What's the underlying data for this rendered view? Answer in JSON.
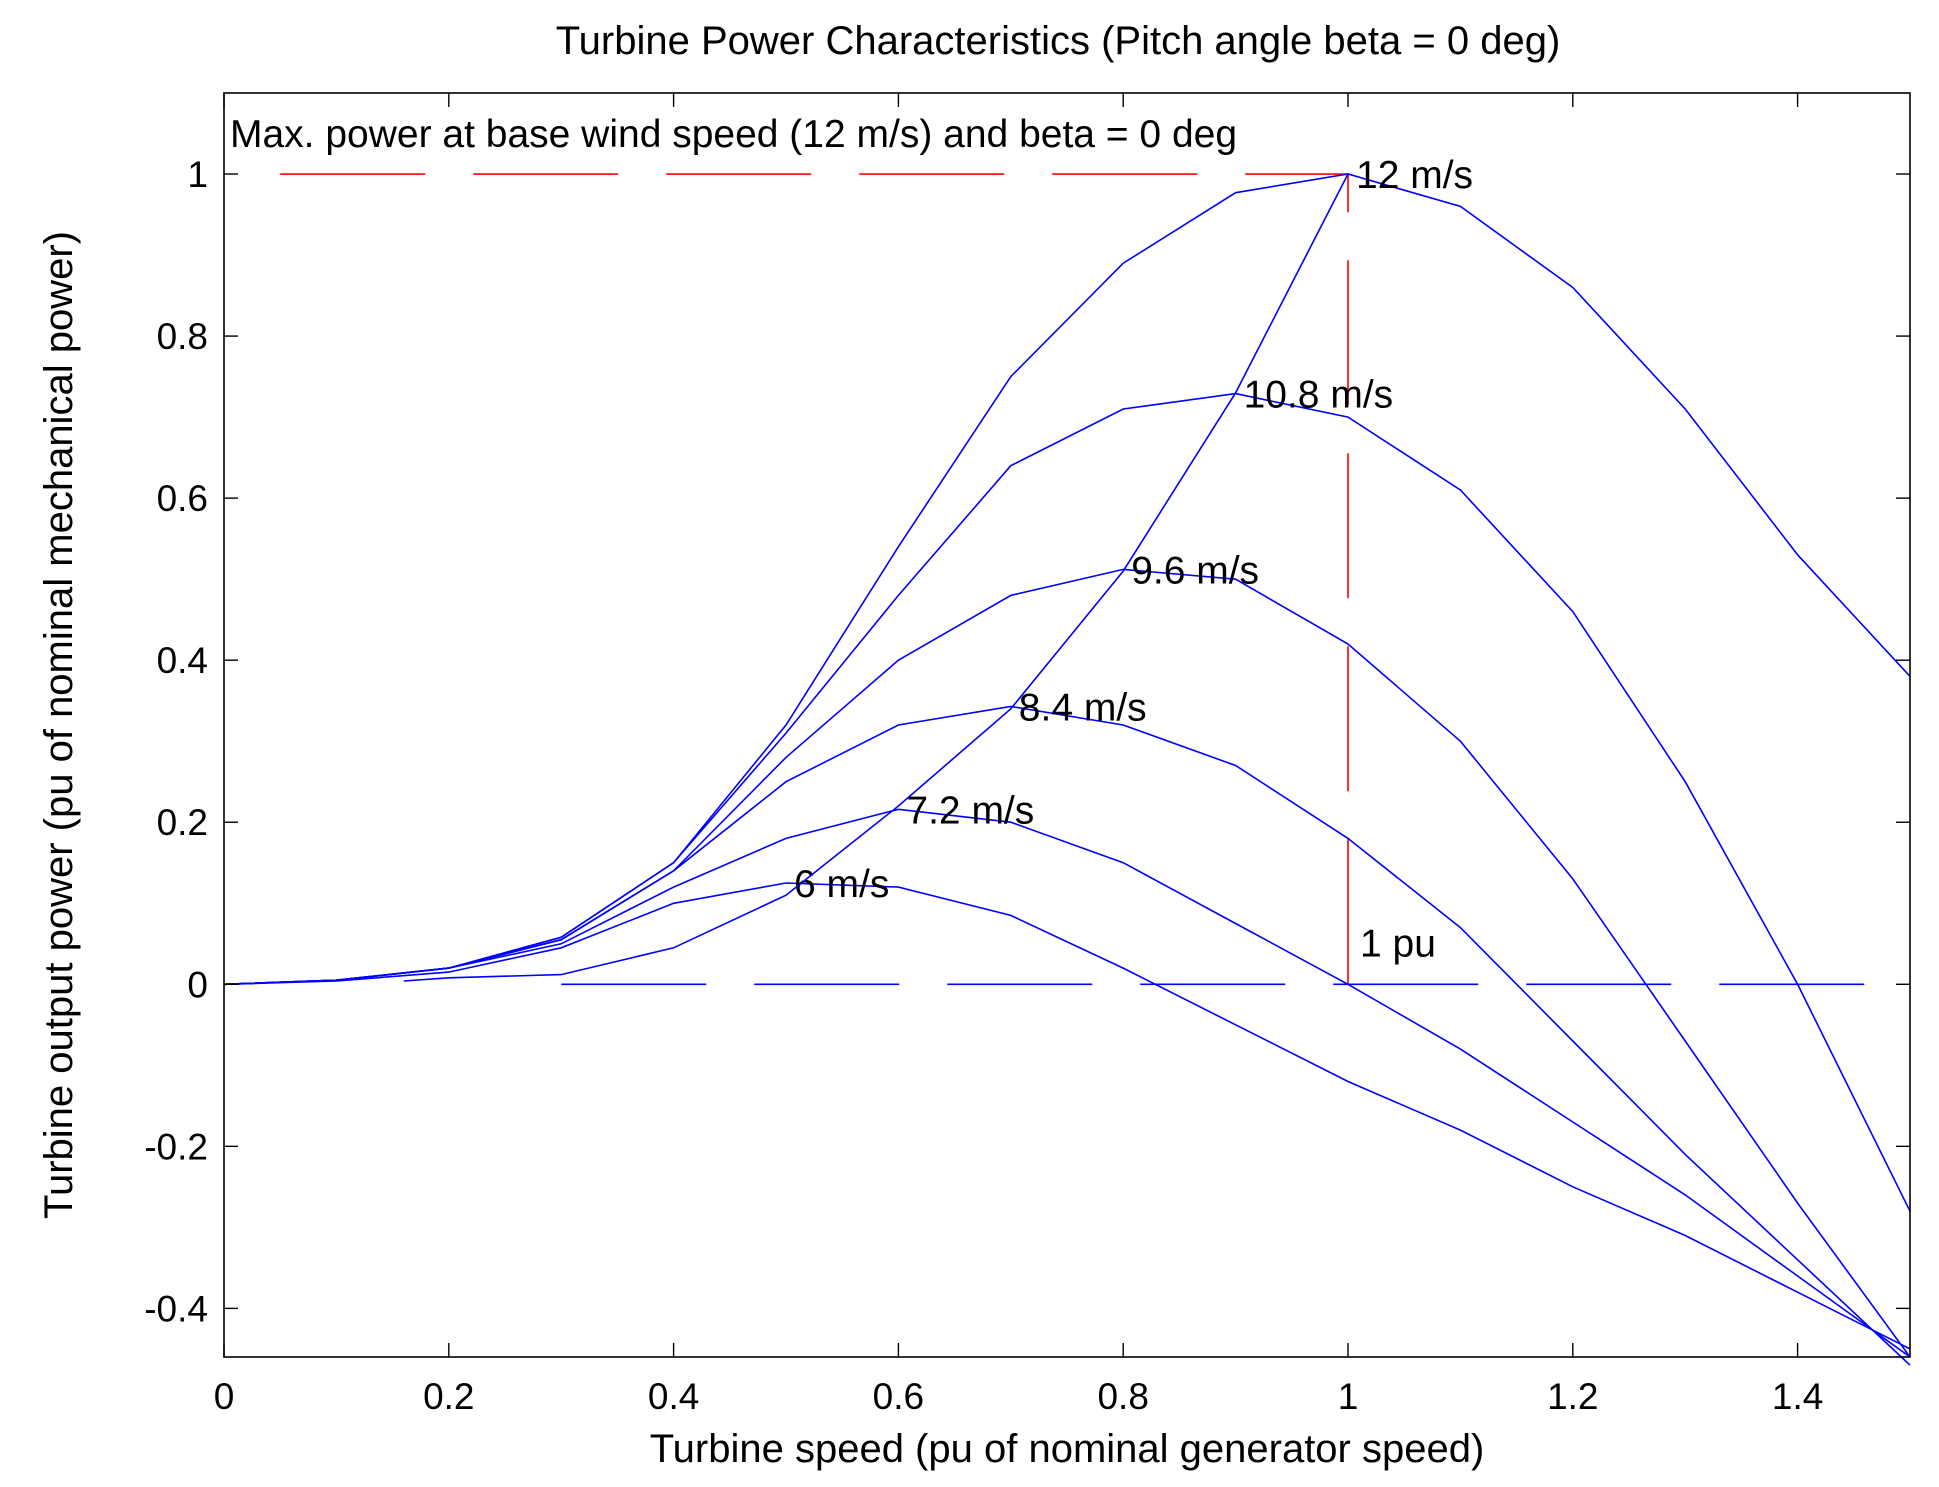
{
  "chart_data": {
    "type": "line",
    "title": "Turbine Power Characteristics (Pitch angle beta = 0 deg)",
    "xlabel": "Turbine speed (pu of nominal generator speed)",
    "ylabel": "Turbine output power (pu of nominal mechanical power)",
    "xlim": [
      0,
      1.5
    ],
    "ylim": [
      -0.46,
      1.1
    ],
    "xticks": [
      0,
      0.2,
      0.4,
      0.6,
      0.8,
      1,
      1.2,
      1.4
    ],
    "xtick_labels": [
      "0",
      "0.2",
      "0.4",
      "0.6",
      "0.8",
      "1",
      "1.2",
      "1.4"
    ],
    "yticks": [
      -0.4,
      -0.2,
      0,
      0.2,
      0.4,
      0.6,
      0.8,
      1
    ],
    "ytick_labels": [
      "-0.4",
      "-0.2",
      "0",
      "0.2",
      "0.4",
      "0.6",
      "0.8",
      "1"
    ],
    "grid": false,
    "annotation": "Max. power at base wind speed (12 m/s) and beta = 0 deg",
    "unit_label": "1 pu",
    "series": [
      {
        "name": "12 m/s",
        "label": "12 m/s",
        "label_at": [
          1.0,
          1.0
        ],
        "x": [
          0,
          0.1,
          0.2,
          0.3,
          0.4,
          0.5,
          0.6,
          0.7,
          0.8,
          0.9,
          1.0,
          1.1,
          1.2,
          1.3,
          1.4,
          1.5
        ],
        "y": [
          0,
          0.005,
          0.02,
          0.058,
          0.15,
          0.32,
          0.54,
          0.75,
          0.89,
          0.977,
          1.0,
          0.96,
          0.86,
          0.71,
          0.53,
          0.38
        ]
      },
      {
        "name": "10.8 m/s",
        "label": "10.8 m/s",
        "label_at": [
          0.9,
          0.729
        ],
        "x": [
          0,
          0.1,
          0.2,
          0.3,
          0.4,
          0.5,
          0.6,
          0.7,
          0.8,
          0.9,
          1.0,
          1.1,
          1.2,
          1.3,
          1.4,
          1.5
        ],
        "y": [
          0,
          0.005,
          0.02,
          0.058,
          0.15,
          0.31,
          0.48,
          0.64,
          0.71,
          0.729,
          0.7,
          0.61,
          0.46,
          0.25,
          0.0,
          -0.28
        ]
      },
      {
        "name": "9.6 m/s",
        "label": "9.6 m/s",
        "label_at": [
          0.8,
          0.512
        ],
        "x": [
          0,
          0.1,
          0.2,
          0.3,
          0.4,
          0.5,
          0.6,
          0.7,
          0.8,
          0.9,
          1.0,
          1.1,
          1.2,
          1.3,
          1.4,
          1.5
        ],
        "y": [
          0,
          0.005,
          0.02,
          0.055,
          0.14,
          0.28,
          0.4,
          0.48,
          0.512,
          0.5,
          0.42,
          0.3,
          0.13,
          -0.07,
          -0.27,
          -0.46
        ]
      },
      {
        "name": "8.4 m/s",
        "label": "8.4 m/s",
        "label_at": [
          0.7,
          0.343
        ],
        "x": [
          0,
          0.1,
          0.2,
          0.3,
          0.4,
          0.5,
          0.6,
          0.7,
          0.8,
          0.9,
          1.0,
          1.1,
          1.2,
          1.3,
          1.4,
          1.5
        ],
        "y": [
          0,
          0.005,
          0.02,
          0.055,
          0.14,
          0.25,
          0.32,
          0.343,
          0.32,
          0.27,
          0.18,
          0.07,
          -0.07,
          -0.21,
          -0.34,
          -0.47
        ]
      },
      {
        "name": "7.2 m/s",
        "label": "7.2 m/s",
        "label_at": [
          0.6,
          0.216
        ],
        "x": [
          0,
          0.1,
          0.2,
          0.3,
          0.4,
          0.5,
          0.6,
          0.7,
          0.8,
          0.9,
          1.0,
          1.1,
          1.2,
          1.3,
          1.4,
          1.5
        ],
        "y": [
          0,
          0.005,
          0.02,
          0.05,
          0.12,
          0.18,
          0.216,
          0.2,
          0.15,
          0.075,
          0.0,
          -0.08,
          -0.17,
          -0.26,
          -0.36,
          -0.46
        ]
      },
      {
        "name": "6 m/s",
        "label": "6 m/s",
        "label_at": [
          0.5,
          0.125
        ],
        "x": [
          0,
          0.1,
          0.2,
          0.3,
          0.4,
          0.5,
          0.6,
          0.7,
          0.8,
          0.9,
          1.0,
          1.1,
          1.2,
          1.3,
          1.4,
          1.5
        ],
        "y": [
          0,
          0.004,
          0.015,
          0.045,
          0.1,
          0.125,
          0.12,
          0.085,
          0.02,
          -0.05,
          -0.12,
          -0.18,
          -0.25,
          -0.31,
          -0.38,
          -0.45
        ]
      },
      {
        "name": "max-power locus",
        "x": [
          0.16,
          0.2,
          0.3,
          0.4,
          0.5,
          0.6,
          0.7,
          0.8,
          0.9,
          1.0
        ],
        "y": [
          0.004,
          0.008,
          0.012,
          0.045,
          0.11,
          0.22,
          0.34,
          0.51,
          0.73,
          1.0
        ]
      }
    ],
    "reference_lines": [
      {
        "name": "rated-power-line",
        "color": "#ff0000",
        "orientation": "horizontal",
        "y": 1,
        "x_from": 0.05,
        "x_to": 1.0
      },
      {
        "name": "rated-speed-line",
        "color": "#ff0000",
        "orientation": "vertical",
        "x": 1,
        "y_from": 0,
        "y_to": 1
      },
      {
        "name": "zero-power-line",
        "color": "#0000ff",
        "orientation": "horizontal",
        "y": 0,
        "x_from": 0.3,
        "x_to": 1.5
      }
    ]
  }
}
